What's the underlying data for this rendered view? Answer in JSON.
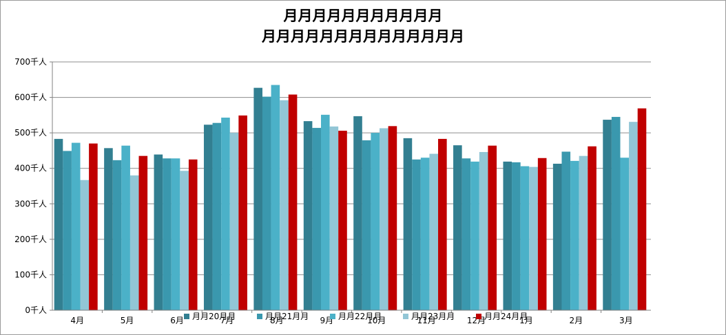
{
  "chart_data": {
    "type": "bar",
    "title_line1": "月月月月月月月月月月月",
    "title_line2": "月月月月月月月月月月月月月月",
    "y_tick_labels": [
      "0千人",
      "100千人",
      "200千人",
      "300千人",
      "400千人",
      "500千人",
      "600千人",
      "700千人"
    ],
    "ylim": [
      0,
      700
    ],
    "grid": true,
    "legend_position": "bottom",
    "categories": [
      "4月",
      "5月",
      "6月",
      "7月",
      "8月",
      "9月",
      "10月",
      "11月",
      "12月",
      "1月",
      "2月",
      "3月"
    ],
    "series": [
      {
        "name": "月月20月月",
        "color": "#327f91",
        "values": [
          483,
          457,
          439,
          523,
          627,
          533,
          547,
          485,
          465,
          419,
          413,
          537
        ]
      },
      {
        "name": "月月21月月",
        "color": "#3a98ae",
        "values": [
          449,
          423,
          428,
          528,
          602,
          514,
          479,
          425,
          428,
          417,
          447,
          545
        ]
      },
      {
        "name": "月月22月月",
        "color": "#4bb1c8",
        "values": [
          472,
          464,
          428,
          543,
          635,
          551,
          500,
          430,
          419,
          406,
          421,
          430
        ]
      },
      {
        "name": "月月23月月",
        "color": "#92c6d6",
        "values": [
          367,
          380,
          393,
          500,
          592,
          518,
          513,
          441,
          446,
          404,
          435,
          531
        ]
      },
      {
        "name": "月月24月月",
        "color": "#c00000",
        "values": [
          470,
          435,
          425,
          549,
          608,
          506,
          519,
          483,
          464,
          429,
          462,
          569
        ]
      }
    ]
  }
}
